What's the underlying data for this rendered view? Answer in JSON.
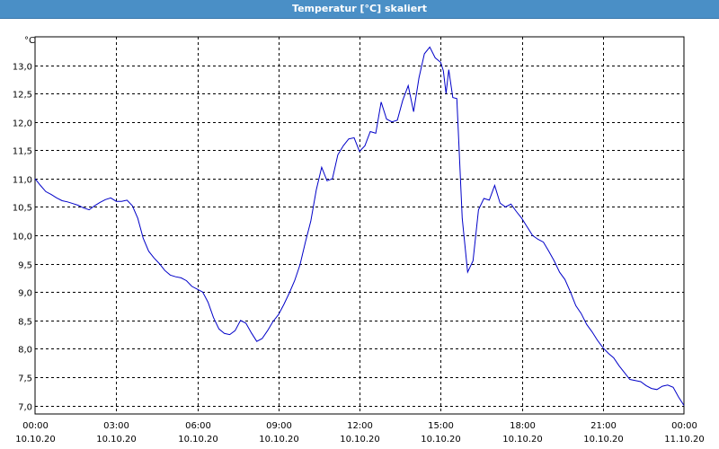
{
  "window": {
    "title": "Temperatur [°C] skaliert"
  },
  "colors": {
    "titlebar": "#4a8fc6",
    "line": "#0000c8",
    "grid": "#000000"
  },
  "chart_data": {
    "type": "line",
    "title": "Temperatur [°C] skaliert",
    "ylabel": "°C",
    "xlabel": "",
    "xlim": [
      0,
      24
    ],
    "ylim": [
      6.85,
      13.5
    ],
    "grid": true,
    "y_ticks": [
      {
        "value": 7.0,
        "label": "7,0"
      },
      {
        "value": 7.5,
        "label": "7,5"
      },
      {
        "value": 8.0,
        "label": "8,0"
      },
      {
        "value": 8.5,
        "label": "8,5"
      },
      {
        "value": 9.0,
        "label": "9,0"
      },
      {
        "value": 9.5,
        "label": "9,5"
      },
      {
        "value": 10.0,
        "label": "10,0"
      },
      {
        "value": 10.5,
        "label": "10,5"
      },
      {
        "value": 11.0,
        "label": "11,0"
      },
      {
        "value": 11.5,
        "label": "11,5"
      },
      {
        "value": 12.0,
        "label": "12,0"
      },
      {
        "value": 12.5,
        "label": "12,5"
      },
      {
        "value": 13.0,
        "label": "13,0"
      }
    ],
    "x_ticks": [
      {
        "value": 0,
        "time": "00:00",
        "date": "10.10.20"
      },
      {
        "value": 3,
        "time": "03:00",
        "date": "10.10.20"
      },
      {
        "value": 6,
        "time": "06:00",
        "date": "10.10.20"
      },
      {
        "value": 9,
        "time": "09:00",
        "date": "10.10.20"
      },
      {
        "value": 12,
        "time": "12:00",
        "date": "10.10.20"
      },
      {
        "value": 15,
        "time": "15:00",
        "date": "10.10.20"
      },
      {
        "value": 18,
        "time": "18:00",
        "date": "10.10.20"
      },
      {
        "value": 21,
        "time": "21:00",
        "date": "10.10.20"
      },
      {
        "value": 24,
        "time": "00:00",
        "date": "11.10.20"
      }
    ],
    "series": [
      {
        "x": [
          0,
          0.2,
          0.4,
          0.6,
          0.8,
          1,
          1.2,
          1.4,
          1.6,
          1.8,
          2,
          2.2,
          2.4,
          2.6,
          2.8,
          3,
          3.2,
          3.4,
          3.6,
          3.8,
          4,
          4.2,
          4.4,
          4.6,
          4.8,
          5,
          5.2,
          5.4,
          5.6,
          5.8,
          6,
          6.2,
          6.4,
          6.6,
          6.8,
          7,
          7.2,
          7.4,
          7.6,
          7.8,
          8,
          8.2,
          8.4,
          8.6,
          8.8,
          9,
          9.2,
          9.4,
          9.6,
          9.8,
          10,
          10.2,
          10.4,
          10.6,
          10.8,
          11,
          11.2,
          11.4,
          11.6,
          11.8,
          12,
          12.2,
          12.4,
          12.6,
          12.8,
          13,
          13.2,
          13.4,
          13.6,
          13.8,
          14,
          14.2,
          14.4,
          14.6,
          14.8,
          15,
          15.1,
          15.2,
          15.3,
          15.45,
          15.6,
          15.8,
          16,
          16.2,
          16.4,
          16.6,
          16.8,
          17,
          17.2,
          17.4,
          17.6,
          17.8,
          18,
          18.2,
          18.4,
          18.6,
          18.8,
          19,
          19.2,
          19.4,
          19.6,
          19.8,
          20,
          20.2,
          20.4,
          20.6,
          20.8,
          21,
          21.2,
          21.4,
          21.6,
          21.8,
          22,
          22.2,
          22.4,
          22.6,
          22.8,
          23,
          23.2,
          23.4,
          23.6,
          23.8,
          24
        ],
        "y": [
          11.0,
          10.88,
          10.77,
          10.72,
          10.66,
          10.61,
          10.59,
          10.56,
          10.53,
          10.48,
          10.45,
          10.52,
          10.58,
          10.63,
          10.66,
          10.6,
          10.6,
          10.62,
          10.52,
          10.3,
          9.95,
          9.72,
          9.6,
          9.5,
          9.38,
          9.3,
          9.27,
          9.25,
          9.2,
          9.1,
          9.05,
          9.0,
          8.82,
          8.55,
          8.35,
          8.27,
          8.25,
          8.32,
          8.5,
          8.45,
          8.28,
          8.13,
          8.18,
          8.32,
          8.48,
          8.6,
          8.78,
          8.98,
          9.2,
          9.48,
          9.88,
          10.25,
          10.8,
          11.2,
          10.96,
          11.0,
          11.42,
          11.58,
          11.7,
          11.72,
          11.48,
          11.58,
          11.83,
          11.8,
          12.35,
          12.05,
          12.0,
          12.03,
          12.38,
          12.64,
          12.18,
          12.78,
          13.2,
          13.32,
          13.13,
          13.05,
          12.9,
          12.5,
          12.92,
          12.43,
          12.41,
          10.3,
          9.35,
          9.55,
          10.45,
          10.65,
          10.62,
          10.88,
          10.57,
          10.5,
          10.55,
          10.42,
          10.3,
          10.15,
          10.0,
          9.93,
          9.88,
          9.72,
          9.55,
          9.35,
          9.22,
          9.0,
          8.76,
          8.62,
          8.43,
          8.3,
          8.15,
          8.02,
          7.92,
          7.84,
          7.7,
          7.58,
          7.46,
          7.44,
          7.42,
          7.35,
          7.3,
          7.28,
          7.34,
          7.36,
          7.32,
          7.15,
          7.0
        ]
      }
    ]
  }
}
